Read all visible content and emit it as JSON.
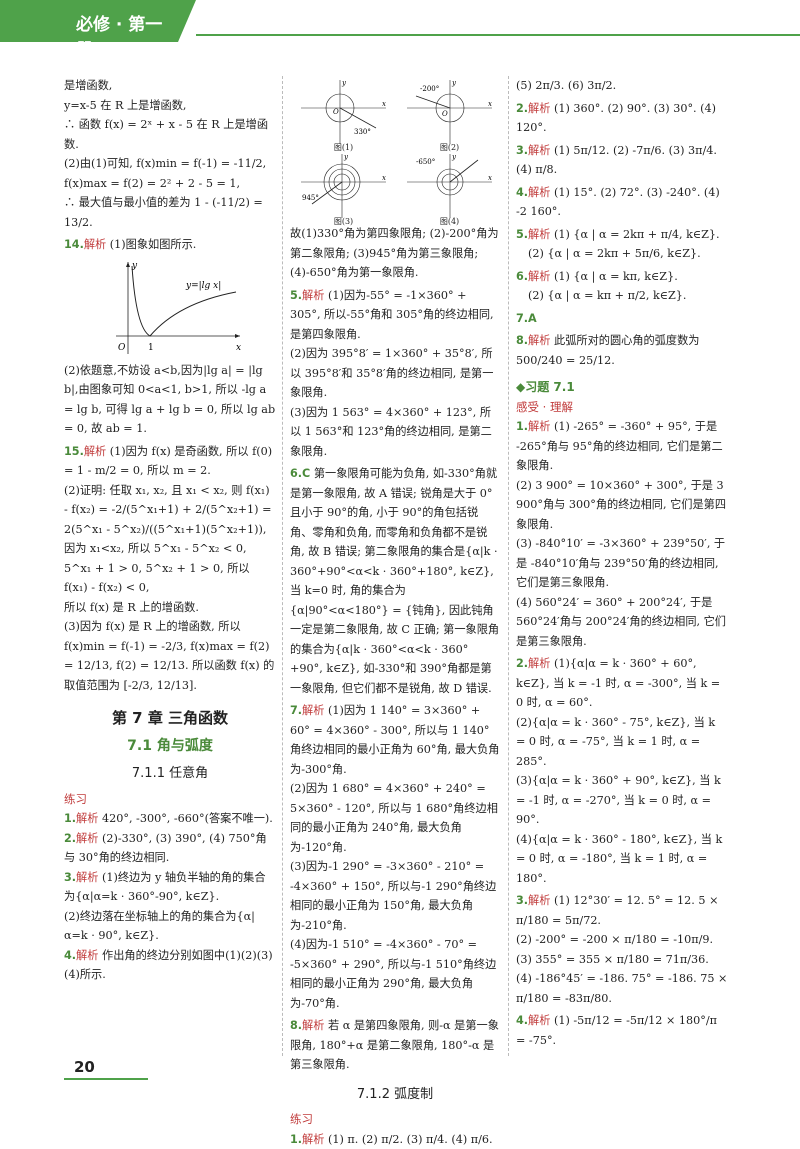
{
  "header": {
    "title": "必修 · 第一册"
  },
  "page_number": "20",
  "col1": {
    "p1": "是增函数,",
    "p2": "y=x-5 在 R 上是增函数,",
    "p3": "∴ 函数 f(x) = 2ˣ + x - 5 在 R 上是增函数.",
    "p4": "(2)由(1)可知, f(x)min = f(-1) = -11/2, f(x)max = f(2) = 2² + 2 - 5 = 1,",
    "p5": "∴ 最大值与最小值的差为 1 - (-11/2) = 13/2.",
    "q14_num": "14.",
    "q14_tag": "解析",
    "q14_a": "(1)图象如图所示.",
    "graph_label": "y=|lg x|",
    "graph_o": "O",
    "graph_one": "1",
    "graph_x": "x",
    "graph_y": "y",
    "q14_b": "(2)依题意,不妨设 a<b,因为|lg a| = |lg b|,由图象可知 0<a<1, b>1, 所以 -lg a = lg b, 可得 lg a + lg b = 0, 所以 lg ab = 0, 故 ab = 1.",
    "q15_num": "15.",
    "q15_tag": "解析",
    "q15_a": "(1)因为 f(x) 是奇函数, 所以 f(0) = 1 - m/2 = 0, 所以 m = 2.",
    "q15_b": "(2)证明: 任取 x₁, x₂, 且 x₁ < x₂, 则 f(x₁) - f(x₂) = -2/(5^x₁+1) + 2/(5^x₂+1) = 2(5^x₁ - 5^x₂)/((5^x₁+1)(5^x₂+1)),",
    "q15_c": "因为 x₁<x₂, 所以 5^x₁ - 5^x₂ < 0, 5^x₁ + 1 > 0, 5^x₂ + 1 > 0, 所以 f(x₁) - f(x₂) < 0,",
    "q15_d": "所以 f(x) 是 R 上的增函数.",
    "q15_e": "(3)因为 f(x) 是 R 上的增函数, 所以 f(x)min = f(-1) = -2/3, f(x)max = f(2) = 12/13, f(2) = 12/13. 所以函数 f(x) 的取值范围为 [-2/3, 12/13].",
    "chapter": "第 7 章   三角函数",
    "section": "7.1   角与弧度",
    "subsection": "7.1.1   任意角",
    "practice": "练习",
    "a1_num": "1.",
    "a1_tag": "解析",
    "a1": "420°, -300°, -660°(答案不唯一).",
    "a2_num": "2.",
    "a2_tag": "解析",
    "a2": "(2)-330°, (3) 390°, (4) 750°角与 30°角的终边相同.",
    "a3_num": "3.",
    "a3_tag": "解析",
    "a3a": "(1)终边为 y 轴负半轴的角的集合为{α|α=k · 360°-90°, k∈Z}.",
    "a3b": "(2)终边落在坐标轴上的角的集合为{α|α=k · 90°, k∈Z}.",
    "a4_num": "4.",
    "a4_tag": "解析",
    "a4": "作出角的终边分别如图中(1)(2)(3)(4)所示."
  },
  "col2": {
    "fig_labels": [
      "330°",
      "-200°",
      "945°",
      "-650°"
    ],
    "fig_caps": [
      "图(1)",
      "图(2)",
      "图(3)",
      "图(4)"
    ],
    "fig_axis_x": "x",
    "fig_axis_y": "y",
    "fig_axis_o": "O",
    "p1": "故(1)330°角为第四象限角; (2)-200°角为第二象限角; (3)945°角为第三象限角; (4)-650°角为第一象限角.",
    "q5_num": "5.",
    "q5_tag": "解析",
    "q5a": "(1)因为-55° = -1×360° + 305°, 所以-55°角和 305°角的终边相同, 是第四象限角.",
    "q5b": "(2)因为 395°8′ = 1×360° + 35°8′, 所以 395°8′和 35°8′角的终边相同, 是第一象限角.",
    "q5c": "(3)因为 1 563° = 4×360° + 123°, 所以 1 563°和 123°角的终边相同, 是第二象限角.",
    "q6_num": "6.",
    "q6_ans": "C",
    "q6": "第一象限角可能为负角, 如-330°角就是第一象限角, 故 A 错误; 锐角是大于 0°且小于 90°的角, 小于 90°的角包括锐角、零角和负角, 而零角和负角都不是锐角, 故 B 错误; 第二象限角的集合是{α|k · 360°+90°<α<k · 360°+180°, k∈Z}, 当 k=0 时, 角的集合为{α|90°<α<180°} = {钝角}, 因此钝角一定是第二象限角, 故 C 正确; 第一象限角的集合为{α|k · 360°<α<k · 360°+90°, k∈Z}, 如-330°和 390°角都是第一象限角, 但它们都不是锐角, 故 D 错误.",
    "q7_num": "7.",
    "q7_tag": "解析",
    "q7a": "(1)因为 1 140° = 3×360° + 60° = 4×360° - 300°, 所以与 1 140°角终边相同的最小正角为 60°角, 最大负角为-300°角.",
    "q7b": "(2)因为 1 680° = 4×360° + 240° = 5×360° - 120°, 所以与 1 680°角终边相同的最小正角为 240°角, 最大负角为-120°角.",
    "q7c": "(3)因为-1 290° = -3×360° - 210° = -4×360° + 150°, 所以与-1 290°角终边相同的最小正角为 150°角, 最大负角为-210°角.",
    "q7d": "(4)因为-1 510° = -4×360° - 70° = -5×360° + 290°, 所以与-1 510°角终边相同的最小正角为 290°角, 最大负角为-70°角.",
    "q8_num": "8.",
    "q8_tag": "解析",
    "q8": "若 α 是第四象限角, 则-α 是第一象限角, 180°+α 是第二象限角, 180°-α 是第三象限角.",
    "subsection2": "7.1.2   弧度制",
    "practice2": "练习",
    "b1_num": "1.",
    "b1_tag": "解析",
    "b1": "(1) π. (2) π/2. (3) π/4. (4) π/6."
  },
  "col3": {
    "p1": "(5) 2π/3. (6) 3π/2.",
    "b2_num": "2.",
    "b2_tag": "解析",
    "b2": "(1) 360°. (2) 90°. (3) 30°. (4) 120°.",
    "b3_num": "3.",
    "b3_tag": "解析",
    "b3": "(1) 5π/12. (2) -7π/6. (3) 3π/4. (4) π/8.",
    "b4_num": "4.",
    "b4_tag": "解析",
    "b4": "(1) 15°. (2) 72°. (3) -240°. (4) -2 160°.",
    "b5_num": "5.",
    "b5_tag": "解析",
    "b5a": "(1) {α | α = 2kπ + π/4, k∈Z}.",
    "b5b": "(2) {α | α = 2kπ + 5π/6, k∈Z}.",
    "b6_num": "6.",
    "b6_tag": "解析",
    "b6a": "(1) {α | α = kπ, k∈Z}.",
    "b6b": "(2) {α | α = kπ + π/2, k∈Z}.",
    "b7_num": "7.",
    "b7_ans": "A",
    "b8_num": "8.",
    "b8_tag": "解析",
    "b8": "此弧所对的圆心角的弧度数为 500/240 = 25/12.",
    "exercise": "◆习题 7.1",
    "exercise_sub": "感受 · 理解",
    "c1_num": "1.",
    "c1_tag": "解析",
    "c1a": "(1) -265° = -360° + 95°, 于是 -265°角与 95°角的终边相同, 它们是第二象限角.",
    "c1b": "(2) 3 900° = 10×360° + 300°, 于是 3 900°角与 300°角的终边相同, 它们是第四象限角.",
    "c1c": "(3) -840°10′ = -3×360° + 239°50′, 于是 -840°10′角与 239°50′角的终边相同, 它们是第三象限角.",
    "c1d": "(4) 560°24′ = 360° + 200°24′, 于是 560°24′角与 200°24′角的终边相同, 它们是第三象限角.",
    "c2_num": "2.",
    "c2_tag": "解析",
    "c2a": "(1){α|α = k · 360° + 60°, k∈Z}, 当 k = -1 时, α = -300°, 当 k = 0 时, α = 60°.",
    "c2b": "(2){α|α = k · 360° - 75°, k∈Z}, 当 k = 0 时, α = -75°, 当 k = 1 时, α = 285°.",
    "c2c": "(3){α|α = k · 360° + 90°, k∈Z}, 当 k = -1 时, α = -270°, 当 k = 0 时, α = 90°.",
    "c2d": "(4){α|α = k · 360° - 180°, k∈Z}, 当 k = 0 时, α = -180°, 当 k = 1 时, α = 180°.",
    "c3_num": "3.",
    "c3_tag": "解析",
    "c3a": "(1) 12°30′ = 12. 5° = 12. 5 × π/180 = 5π/72.",
    "c3b": "(2) -200° = -200 × π/180 = -10π/9.",
    "c3c": "(3) 355° = 355 × π/180 = 71π/36.",
    "c3d": "(4) -186°45′ = -186. 75° = -186. 75 × π/180 = -83π/80.",
    "c4_num": "4.",
    "c4_tag": "解析",
    "c4": "(1) -5π/12 = -5π/12 × 180°/π = -75°."
  }
}
